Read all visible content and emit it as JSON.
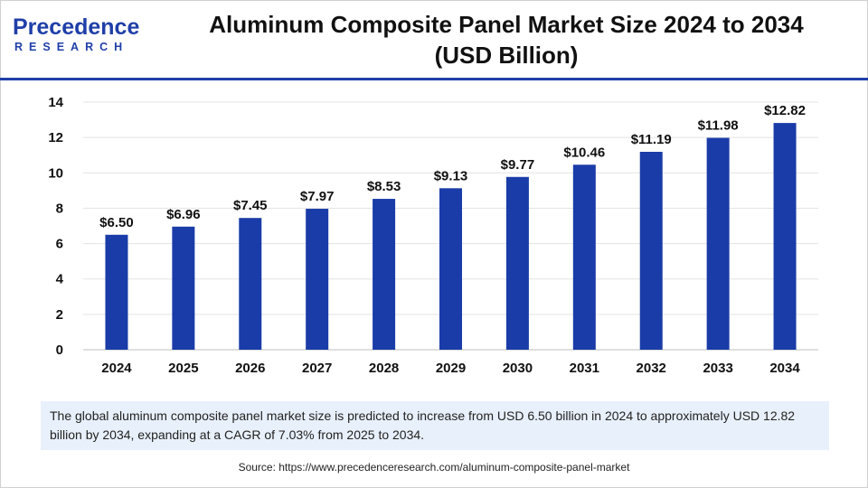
{
  "brand": {
    "name": "Precedence",
    "sub": "RESEARCH"
  },
  "chart_data": {
    "type": "bar",
    "title": "Aluminum Composite Panel Market Size 2024 to 2034",
    "subtitle": "(USD Billion)",
    "xlabel": "",
    "ylabel": "",
    "categories": [
      "2024",
      "2025",
      "2026",
      "2027",
      "2028",
      "2029",
      "2030",
      "2031",
      "2032",
      "2033",
      "2034"
    ],
    "values": [
      6.5,
      6.96,
      7.45,
      7.97,
      8.53,
      9.13,
      9.77,
      10.46,
      11.19,
      11.98,
      12.82
    ],
    "data_labels": [
      "$6.50",
      "$6.96",
      "$7.45",
      "$7.97",
      "$8.53",
      "$9.13",
      "$9.77",
      "$10.46",
      "$11.19",
      "$11.98",
      "$12.82"
    ],
    "ylim": [
      0,
      14
    ],
    "yticks": [
      "0",
      "2",
      "4",
      "6",
      "8",
      "10",
      "12",
      "14"
    ],
    "grid": true,
    "legend": "none",
    "bar_color": "#1a3ca8"
  },
  "note": {
    "text": "The global aluminum composite panel market size is predicted to increase from USD 6.50 billion in 2024 to approximately USD 12.82 billion by 2034, expanding at a CAGR of 7.03% from 2025 to 2034."
  },
  "source": {
    "text": "Source: https://www.precedenceresearch.com/aluminum-composite-panel-market"
  }
}
